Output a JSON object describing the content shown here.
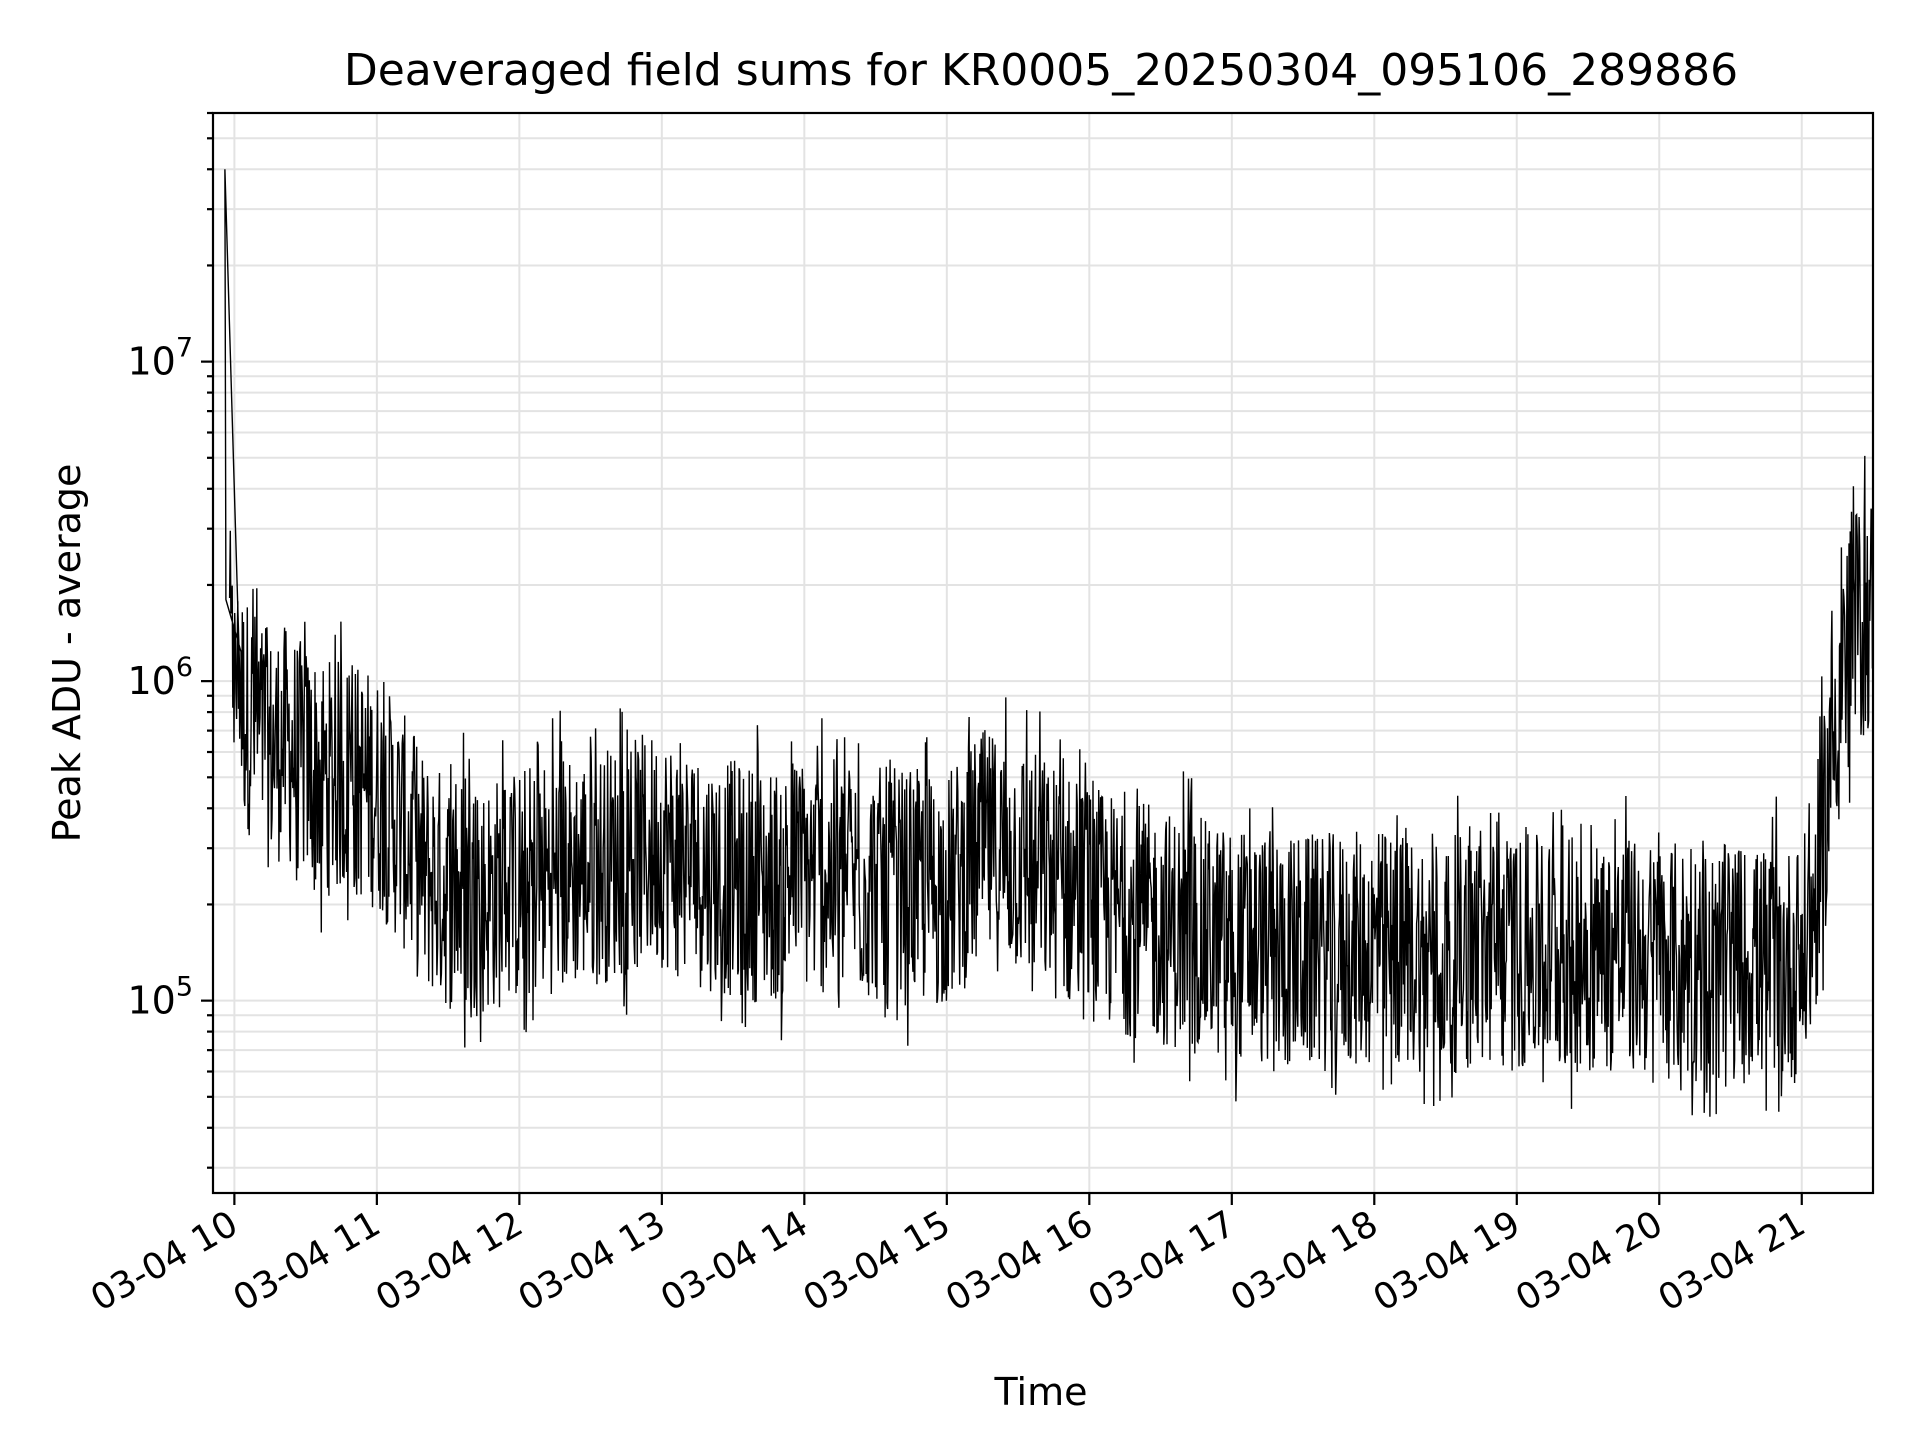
{
  "chart_data": {
    "type": "line",
    "title": "Deaveraged field sums for KR0005_20250304_095106_289886",
    "xlabel": "Time",
    "ylabel": "Peak ADU - average",
    "y_scale": "log",
    "ylim": [
      25000,
      60000000
    ],
    "xlim": [
      "03-04 09:51",
      "03-04 21:30"
    ],
    "grid": true,
    "legend": "none",
    "line_color": "#000000",
    "x_ticks": [
      "03-04 10",
      "03-04 11",
      "03-04 12",
      "03-04 13",
      "03-04 14",
      "03-04 15",
      "03-04 16",
      "03-04 17",
      "03-04 18",
      "03-04 19",
      "03-04 20",
      "03-04 21"
    ],
    "y_ticks": [
      {
        "value": 100000,
        "base": "10",
        "exp": "5"
      },
      {
        "value": 1000000,
        "base": "10",
        "exp": "6"
      },
      {
        "value": 10000000,
        "base": "10",
        "exp": "7"
      }
    ],
    "series": [
      {
        "x": [
          "03-04 09:51",
          "03-04 09:52",
          "03-04 09:53",
          "03-04 09:54",
          "03-04 09:55",
          "03-04 09:56",
          "03-04 09:58",
          "03-04 10:00",
          "03-04 10:05",
          "03-04 10:10",
          "03-04 10:15",
          "03-04 10:20",
          "03-04 10:25",
          "03-04 10:30",
          "03-04 10:40",
          "03-04 10:50",
          "03-04 11:00",
          "03-04 11:10",
          "03-04 11:20",
          "03-04 11:30",
          "03-04 11:45",
          "03-04 12:00",
          "03-04 12:15",
          "03-04 12:30",
          "03-04 12:45",
          "03-04 13:00",
          "03-04 13:15",
          "03-04 13:30",
          "03-04 13:45",
          "03-04 14:00",
          "03-04 14:30",
          "03-04 15:00",
          "03-04 15:15",
          "03-04 15:30",
          "03-04 16:00",
          "03-04 16:30",
          "03-04 17:00",
          "03-04 17:30",
          "03-04 18:00",
          "03-04 18:30",
          "03-04 19:00",
          "03-04 19:30",
          "03-04 20:00",
          "03-04 20:20",
          "03-04 20:40",
          "03-04 21:00",
          "03-04 21:05",
          "03-04 21:10",
          "03-04 21:15",
          "03-04 21:20",
          "03-04 21:25",
          "03-04 21:30"
        ],
        "y": [
          500000,
          40000000,
          1500000,
          2500000,
          1200000,
          2000000,
          1300000,
          1000000,
          800000,
          700000,
          600000,
          650000,
          600000,
          550000,
          500000,
          500000,
          450000,
          350000,
          250000,
          220000,
          210000,
          230000,
          250000,
          260000,
          280000,
          300000,
          260000,
          240000,
          230000,
          250000,
          230000,
          220000,
          300000,
          280000,
          200000,
          170000,
          150000,
          140000,
          145000,
          140000,
          140000,
          140000,
          135000,
          130000,
          130000,
          130000,
          180000,
          400000,
          900000,
          1300000,
          1500000,
          1700000
        ],
        "spread_low": 0.35,
        "spread_high": 3.0
      }
    ]
  }
}
